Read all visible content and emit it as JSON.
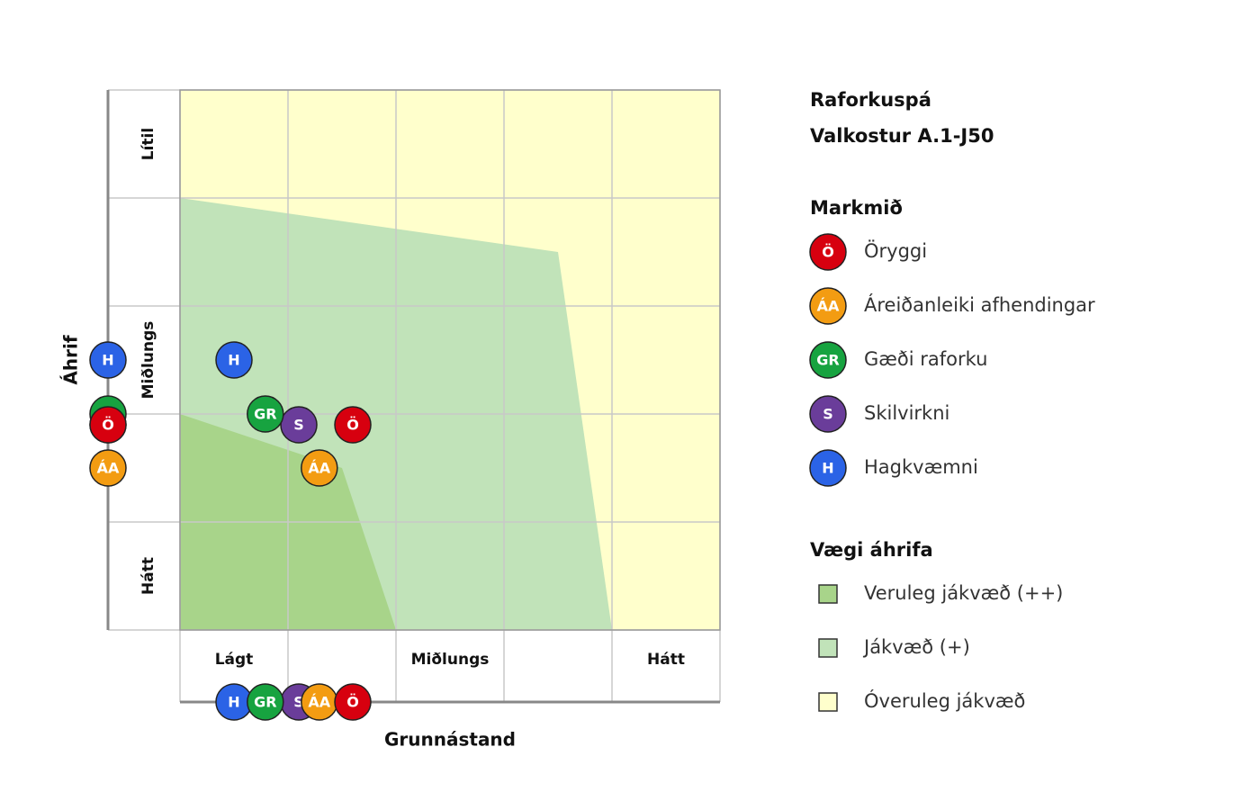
{
  "chart_data": {
    "type": "scatter",
    "title": "Raforkuspá",
    "subtitle": "Valkostur A.1-J50",
    "xlabel": "Grunnástand",
    "ylabel": "Áhrif",
    "xlim": [
      0,
      5
    ],
    "ylim": [
      0,
      5
    ],
    "xticks": [
      {
        "value": 0.5,
        "label": "Lágt"
      },
      {
        "value": 2.5,
        "label": "Miðlungs"
      },
      {
        "value": 4.5,
        "label": "Hátt"
      }
    ],
    "yticks": [
      {
        "value": 0.5,
        "label": "Hátt"
      },
      {
        "value": 2.5,
        "label": "Miðlungs"
      },
      {
        "value": 4.5,
        "label": "Lítil"
      }
    ],
    "xgrid": [
      0,
      1,
      2,
      3,
      4,
      5
    ],
    "ygrid": [
      0,
      1,
      2,
      3,
      4,
      5
    ],
    "legend_title": "Markmið",
    "series": [
      {
        "name": "Öryggi",
        "label": "Ö",
        "color": "#d7000f",
        "x": [
          1.6
        ],
        "y": [
          1.9
        ]
      },
      {
        "name": "Áreiðanleiki afhendingar",
        "label": "ÁA",
        "color": "#f39c12",
        "x": [
          1.29
        ],
        "y": [
          1.5
        ]
      },
      {
        "name": "Gæði raforku",
        "label": "GR",
        "color": "#17a340",
        "x": [
          0.79
        ],
        "y": [
          2.0
        ]
      },
      {
        "name": "Skilvirkni",
        "label": "S",
        "color": "#6a3d9a",
        "x": [
          1.1
        ],
        "y": [
          1.9
        ]
      },
      {
        "name": "Hagkvæmni",
        "label": "H",
        "color": "#2b63e6",
        "x": [
          0.5
        ],
        "y": [
          2.5
        ]
      }
    ],
    "regions_title": "Vægi áhrifa",
    "regions": [
      {
        "name": "Óveruleg jákvæð",
        "color": "#ffffcc",
        "x": [
          0,
          5,
          5,
          0
        ],
        "y": [
          0,
          0,
          5,
          5
        ]
      },
      {
        "name": "Jákvæð (+)",
        "color": "#c1e3b9",
        "x": [
          0,
          3.5,
          4,
          0
        ],
        "y": [
          4,
          3.5,
          0,
          0
        ]
      },
      {
        "name": "Veruleg jákvæð (++)",
        "color": "#a8d48a",
        "x": [
          0,
          1.5,
          2,
          0
        ],
        "y": [
          2,
          1.5,
          0,
          0
        ]
      }
    ]
  }
}
